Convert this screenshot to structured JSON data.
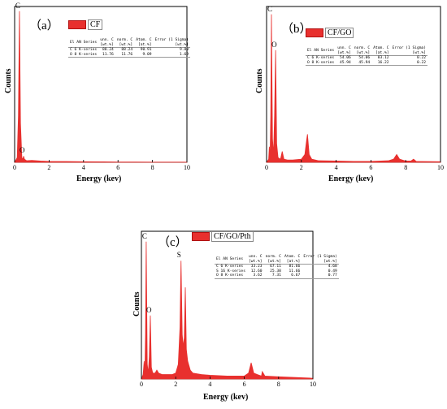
{
  "chart_data": [
    {
      "type": "line",
      "panel_label": "（a）",
      "legend": "CF",
      "xlabel": "Energy  (kev)",
      "ylabel": "Counts",
      "xlim": [
        0,
        10
      ],
      "x_ticks": [
        "0",
        "2",
        "4",
        "6",
        "8",
        "10"
      ],
      "peaks": [
        {
          "element": "C",
          "energy": 0.28,
          "height": 0.97
        },
        {
          "element": "O",
          "energy": 0.52,
          "height": 0.04
        }
      ],
      "series": [
        {
          "x": [
            0.0,
            0.15,
            0.22,
            0.28,
            0.34,
            0.42,
            0.48,
            0.52,
            0.57,
            0.7,
            1.0,
            1.5,
            2.0,
            3.0,
            4.0,
            5.0,
            6.0,
            7.0,
            8.0,
            9.0,
            10.0
          ],
          "y": [
            0.0,
            0.03,
            0.3,
            0.97,
            0.25,
            0.03,
            0.02,
            0.04,
            0.02,
            0.01,
            0.012,
            0.008,
            0.006,
            0.005,
            0.004,
            0.003,
            0.002,
            0.002,
            0.001,
            0.001,
            0.001
          ]
        }
      ],
      "table": {
        "headers": [
          "El AN  Series",
          "unn. C\n[wt.%]",
          "norm. C\n[wt.%]",
          "Atom. C\n[at.%]",
          "Error (1 Sigma)\n[wt.%]"
        ],
        "rows": [
          [
            "C  6  K-series",
            "88.24",
            "88.24",
            "90.91",
            "9.80"
          ],
          [
            "O  8  K-series",
            "11.76",
            "11.76",
            "9.09",
            "1.69"
          ]
        ]
      }
    },
    {
      "type": "line",
      "panel_label": "（b）",
      "legend": "CF/GO",
      "xlabel": "Energy  (kev)",
      "ylabel": "Counts",
      "xlim": [
        0,
        10
      ],
      "x_ticks": [
        "0",
        "2",
        "4",
        "6",
        "8",
        "10"
      ],
      "peaks": [
        {
          "element": "C",
          "energy": 0.28,
          "height": 0.95
        },
        {
          "element": "O",
          "energy": 0.52,
          "height": 0.72
        }
      ],
      "series": [
        {
          "x": [
            0.0,
            0.12,
            0.16,
            0.2,
            0.24,
            0.28,
            0.34,
            0.4,
            0.46,
            0.52,
            0.58,
            0.66,
            0.8,
            0.9,
            1.0,
            1.2,
            1.5,
            2.0,
            2.2,
            2.3,
            2.35,
            2.45,
            2.6,
            3.0,
            4.0,
            5.0,
            6.0,
            7.0,
            7.3,
            7.48,
            7.65,
            8.0,
            8.3,
            8.45,
            8.6,
            9.0,
            10.0
          ],
          "y": [
            0.0,
            0.02,
            0.1,
            0.03,
            0.3,
            0.95,
            0.15,
            0.05,
            0.3,
            0.72,
            0.12,
            0.03,
            0.02,
            0.07,
            0.02,
            0.015,
            0.015,
            0.02,
            0.05,
            0.14,
            0.18,
            0.05,
            0.02,
            0.01,
            0.008,
            0.006,
            0.006,
            0.01,
            0.02,
            0.05,
            0.02,
            0.008,
            0.008,
            0.02,
            0.006,
            0.005,
            0.004
          ]
        }
      ],
      "table": {
        "headers": [
          "El AN  Series",
          "unn. C\n[wt.%]",
          "norm. C\n[wt.%]",
          "Atom. C\n[at.%]",
          "Error (1 Sigma)\n[wt.%]"
        ],
        "rows": [
          [
            "C  6  K-series",
            "54.06",
            "54.06",
            "83.12",
            "0.22"
          ],
          [
            "O  8  K-series",
            "45.94",
            "45.94",
            "16.22",
            "0.22"
          ]
        ]
      }
    },
    {
      "type": "line",
      "panel_label": "（c）",
      "legend": "CF/GO/Pth",
      "xlabel": "Energy  (kev)",
      "ylabel": "Counts",
      "xlim": [
        0,
        10
      ],
      "x_ticks": [
        "0",
        "2",
        "4",
        "6",
        "8",
        "10"
      ],
      "peaks": [
        {
          "element": "C",
          "energy": 0.28,
          "height": 0.93
        },
        {
          "element": "O",
          "energy": 0.52,
          "height": 0.43
        },
        {
          "element": "S",
          "energy": 2.31,
          "height": 0.8
        }
      ],
      "series": [
        {
          "x": [
            0.0,
            0.1,
            0.16,
            0.2,
            0.24,
            0.28,
            0.34,
            0.4,
            0.46,
            0.52,
            0.58,
            0.66,
            0.8,
            0.9,
            1.0,
            1.2,
            1.5,
            1.8,
            2.0,
            2.15,
            2.25,
            2.31,
            2.38,
            2.44,
            2.5,
            2.56,
            2.62,
            2.7,
            2.85,
            3.0,
            3.5,
            4.0,
            5.0,
            6.0,
            6.25,
            6.4,
            6.55,
            6.75,
            7.0,
            7.05,
            7.2,
            8.0,
            9.0,
            10.0
          ],
          "y": [
            0.0,
            0.03,
            0.12,
            0.03,
            0.3,
            0.93,
            0.1,
            0.04,
            0.15,
            0.43,
            0.08,
            0.04,
            0.04,
            0.06,
            0.04,
            0.03,
            0.03,
            0.03,
            0.04,
            0.1,
            0.35,
            0.8,
            0.3,
            0.22,
            0.28,
            0.62,
            0.2,
            0.12,
            0.06,
            0.04,
            0.03,
            0.025,
            0.02,
            0.02,
            0.04,
            0.11,
            0.04,
            0.03,
            0.02,
            0.05,
            0.02,
            0.015,
            0.01,
            0.005
          ]
        }
      ],
      "table": {
        "headers": [
          "El AN  Series",
          "unn. C\n[wt.%]",
          "norm. C\n[wt.%]",
          "Atom. C\n[at.%]",
          "Error (1 Sigma)\n[wt.%]"
        ],
        "rows": [
          [
            "C  6  K-series",
            "33.23",
            "67.11",
            "81.66",
            "4.68"
          ],
          [
            "S  16 K-series",
            "12.60",
            "25.38",
            "11.66",
            "0.49"
          ],
          [
            "O  8  K-series",
            "3.62",
            "7.31",
            "6.67",
            "0.77"
          ]
        ]
      }
    }
  ],
  "colors": {
    "line": "#e8302e",
    "fill": "#e8302e"
  }
}
